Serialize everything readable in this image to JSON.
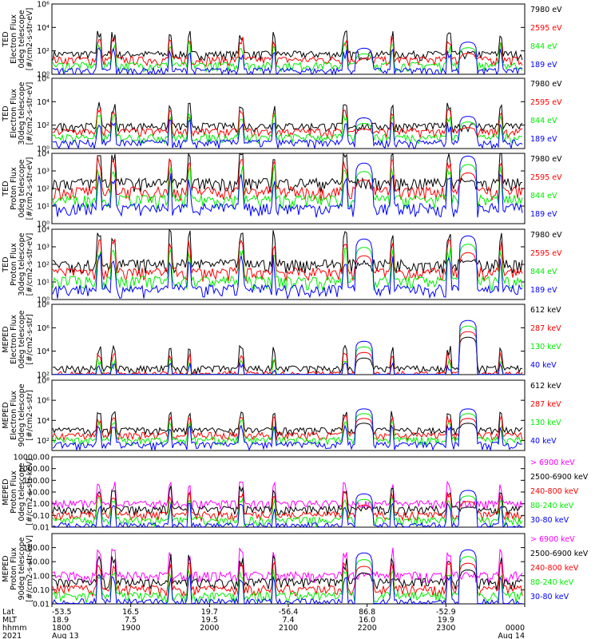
{
  "chart_data": [
    {
      "type": "line",
      "scale": "log",
      "ylabel_lines": [
        "TED",
        "Electron Flux",
        "0deg telescope",
        "[#/cm2-s-str-eV]"
      ],
      "ytick_labels": [
        "10^0",
        "10^2",
        "10^4",
        "10^6"
      ],
      "ylim": [
        1,
        1000000
      ],
      "series": [
        {
          "name": "7980 eV",
          "color": "#000000"
        },
        {
          "name": "2595 eV",
          "color": "#ff0000"
        },
        {
          "name": "844 eV",
          "color": "#00ee00"
        },
        {
          "name": "189 eV",
          "color": "#0000ff"
        }
      ],
      "passes": [
        [
          0.66,
          120
        ],
        [
          0.88,
          400
        ]
      ],
      "base_level": 50
    },
    {
      "type": "line",
      "scale": "log",
      "ylabel_lines": [
        "TED",
        "Electron Flux",
        "30deg telescope",
        "[#/cm2-s-str-eV]"
      ],
      "ytick_labels": [
        "10^0",
        "10^2",
        "10^4",
        "10^6"
      ],
      "ylim": [
        1,
        1000000
      ],
      "series": [
        {
          "name": "7980 eV",
          "color": "#000000"
        },
        {
          "name": "2595 eV",
          "color": "#ff0000"
        },
        {
          "name": "844 eV",
          "color": "#00ee00"
        },
        {
          "name": "189 eV",
          "color": "#0000ff"
        }
      ],
      "passes": [
        [
          0.66,
          300
        ],
        [
          0.88,
          400
        ]
      ],
      "base_level": 80
    },
    {
      "type": "line",
      "scale": "log",
      "ylabel_lines": [
        "TED",
        "Proton Flux",
        "0deg telescope",
        "[#/cm2-s-str-eV]"
      ],
      "ytick_labels": [
        "10^0",
        "10^1",
        "10^2",
        "10^3",
        "10^4"
      ],
      "ylim": [
        1,
        10000
      ],
      "series": [
        {
          "name": "7980 eV",
          "color": "#000000"
        },
        {
          "name": "2595 eV",
          "color": "#ff0000"
        },
        {
          "name": "844 eV",
          "color": "#00ee00"
        },
        {
          "name": "189 eV",
          "color": "#0000ff"
        }
      ],
      "passes": [
        [
          0.66,
          2000
        ],
        [
          0.88,
          5000
        ]
      ],
      "base_level": 200
    },
    {
      "type": "line",
      "scale": "log",
      "ylabel_lines": [
        "TED",
        "Proton Flux",
        "30deg telescope",
        "[#/cm2-s-str-eV]"
      ],
      "ytick_labels": [
        "10^0",
        "10^1",
        "10^2",
        "10^3",
        "10^4"
      ],
      "ylim": [
        1,
        10000
      ],
      "series": [
        {
          "name": "7980 eV",
          "color": "#000000"
        },
        {
          "name": "2595 eV",
          "color": "#ff0000"
        },
        {
          "name": "844 eV",
          "color": "#00ee00"
        },
        {
          "name": "189 eV",
          "color": "#0000ff"
        }
      ],
      "passes": [
        [
          0.66,
          2000
        ],
        [
          0.88,
          3000
        ]
      ],
      "base_level": 100
    },
    {
      "type": "line",
      "scale": "log",
      "ylabel_lines": [
        "MEPED",
        "Electron Flux",
        "0deg telescope",
        "[#/cm2-s-str]"
      ],
      "ytick_labels": [
        "10^2",
        "10^4",
        "10^6",
        "10^8"
      ],
      "ylim": [
        100,
        100000000
      ],
      "series": [
        {
          "name": "612 keV",
          "color": "#000000"
        },
        {
          "name": "287 keV",
          "color": "#ff0000"
        },
        {
          "name": "130 keV",
          "color": "#00ee00"
        },
        {
          "name": "40 keV",
          "color": "#0000ff"
        }
      ],
      "passes": [
        [
          0.66,
          50000
        ],
        [
          0.88,
          3000000
        ]
      ],
      "base_level": 300
    },
    {
      "type": "line",
      "scale": "log",
      "ylabel_lines": [
        "MEPED",
        "Electron Flux",
        "90deg telescope",
        "[#/cm2-s-str]"
      ],
      "ytick_labels": [
        "10^2",
        "10^4",
        "10^6",
        "10^8"
      ],
      "ylim": [
        10,
        100000000
      ],
      "series": [
        {
          "name": "612 keV",
          "color": "#000000"
        },
        {
          "name": "287 keV",
          "color": "#ff0000"
        },
        {
          "name": "130 keV",
          "color": "#00ee00"
        },
        {
          "name": "40 keV",
          "color": "#0000ff"
        }
      ],
      "passes": [
        [
          0.66,
          100000
        ],
        [
          0.88,
          100000
        ]
      ],
      "base_level": 1000
    },
    {
      "type": "line",
      "scale": "log",
      "ylabel_lines": [
        "MEPED",
        "Proton Flux",
        "0deg telescope",
        "[#/cm2-s-str-keV]"
      ],
      "ytick_labels": [
        "0.01",
        "0.10",
        "1.00",
        "10.00",
        "100.00",
        "1000.00",
        "10000.00"
      ],
      "ylim": [
        0.01,
        10000
      ],
      "series": [
        {
          "name": "> 6900 keV",
          "color": "#ff00ff"
        },
        {
          "name": "2500-6900 keV",
          "color": "#000000"
        },
        {
          "name": "240-800 keV",
          "color": "#ff0000"
        },
        {
          "name": "80-240 keV",
          "color": "#00ee00"
        },
        {
          "name": "30-80 keV",
          "color": "#0000ff"
        }
      ],
      "passes": [
        [
          0.66,
          5
        ],
        [
          0.88,
          10
        ]
      ],
      "base_level": 1
    },
    {
      "type": "line",
      "scale": "log",
      "ylabel_lines": [
        "MEPED",
        "Proton Flux",
        "90deg telescope",
        "[#/cm2-s-str-keV]"
      ],
      "ytick_labels": [
        "0.01",
        "0.10",
        "1.00",
        "10.00",
        "100.00"
      ],
      "ylim": [
        0.01,
        1000
      ],
      "series": [
        {
          "name": "> 6900 keV",
          "color": "#ff00ff"
        },
        {
          "name": "2500-6900 keV",
          "color": "#000000"
        },
        {
          "name": "240-800 keV",
          "color": "#ff0000"
        },
        {
          "name": "80-240 keV",
          "color": "#00ee00"
        },
        {
          "name": "30-80 keV",
          "color": "#0000ff"
        }
      ],
      "passes": [
        [
          0.66,
          30
        ],
        [
          0.88,
          50
        ]
      ],
      "base_level": 1
    }
  ],
  "x_axis": {
    "row_titles": [
      "Lat",
      "MLT",
      "hhmm",
      "2021"
    ],
    "ticks": [
      {
        "lat": "-53.5",
        "mlt": "18.9",
        "hhmm": "1800",
        "date": "Aug 13"
      },
      {
        "lat": "16.5",
        "mlt": "7.5",
        "hhmm": "1900",
        "date": ""
      },
      {
        "lat": "19.7",
        "mlt": "19.5",
        "hhmm": "2000",
        "date": ""
      },
      {
        "lat": "-56.4",
        "mlt": "7.4",
        "hhmm": "2100",
        "date": ""
      },
      {
        "lat": "86.8",
        "mlt": "16.0",
        "hhmm": "2200",
        "date": ""
      },
      {
        "lat": "-52.9",
        "mlt": "19.9",
        "hhmm": "2300",
        "date": ""
      },
      {
        "lat": "",
        "mlt": "",
        "hhmm": "0000",
        "date": "Aug 14"
      }
    ]
  }
}
